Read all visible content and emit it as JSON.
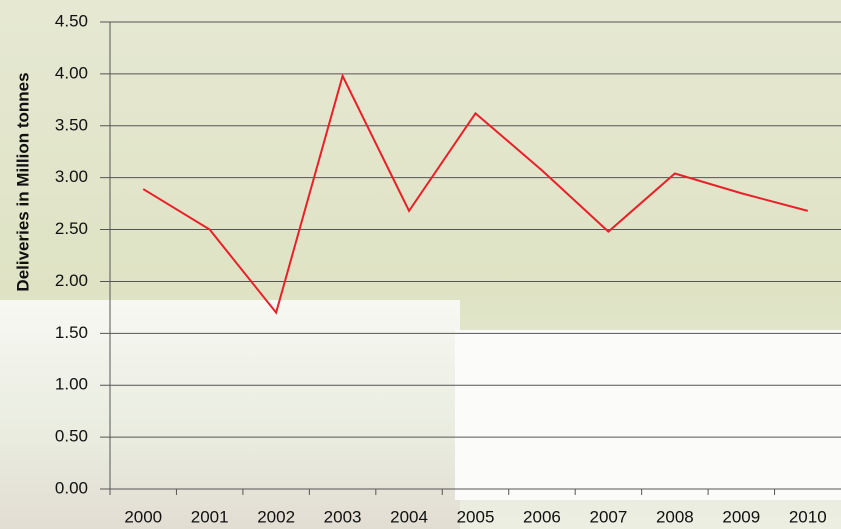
{
  "chart_data": {
    "type": "line",
    "y_label": "Deliveries in Million tonnes",
    "categories": [
      "2000",
      "2001",
      "2002",
      "2003",
      "2004",
      "2005",
      "2006",
      "2007",
      "2008",
      "2009",
      "2010"
    ],
    "values": [
      2.89,
      2.5,
      1.7,
      3.98,
      2.68,
      3.62,
      3.07,
      2.48,
      3.04,
      2.85,
      2.68
    ],
    "color": "#e8202a",
    "ylim": [
      0,
      4.5
    ],
    "yticks": [
      {
        "value": 0,
        "label": "0.00"
      },
      {
        "value": 0.5,
        "label": "0.50"
      },
      {
        "value": 1,
        "label": "1.00"
      },
      {
        "value": 1.5,
        "label": "1.50"
      },
      {
        "value": 2,
        "label": "2.00"
      },
      {
        "value": 2.5,
        "label": "2.50"
      },
      {
        "value": 3,
        "label": "3.00"
      },
      {
        "value": 3.5,
        "label": "3.50"
      },
      {
        "value": 4,
        "label": "4.00"
      },
      {
        "value": 4.5,
        "label": "4.50"
      }
    ],
    "grid": true
  }
}
